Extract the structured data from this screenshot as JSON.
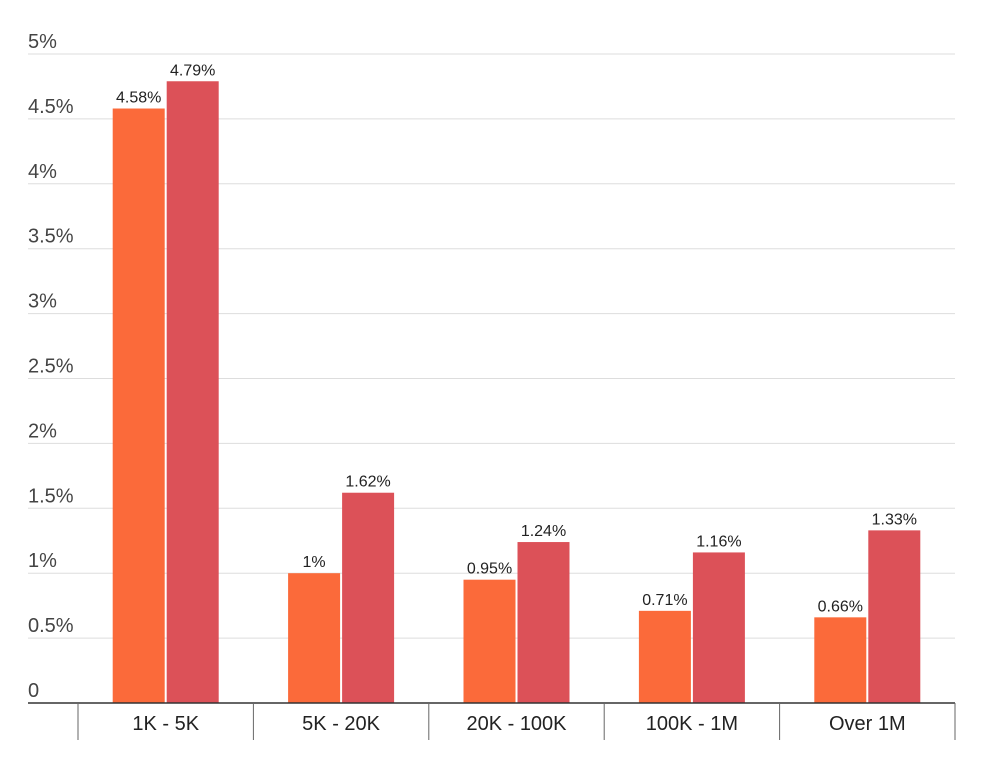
{
  "chart_data": {
    "type": "bar",
    "categories": [
      "1K - 5K",
      "5K - 20K",
      "20K - 100K",
      "100K - 1M",
      "Over 1M"
    ],
    "series": [
      {
        "values": [
          4.58,
          1.0,
          0.95,
          0.71,
          0.66
        ],
        "labels": [
          "4.58%",
          "1%",
          "0.95%",
          "0.71%",
          "0.66%"
        ],
        "color": "#fb6a3a"
      },
      {
        "values": [
          4.79,
          1.62,
          1.24,
          1.16,
          1.33
        ],
        "labels": [
          "4.79%",
          "1.62%",
          "1.24%",
          "1.16%",
          "1.33%"
        ],
        "color": "#dc5158"
      }
    ],
    "yticks": [
      0,
      0.5,
      1,
      1.5,
      2,
      2.5,
      3,
      3.5,
      4,
      4.5,
      5
    ],
    "ytick_labels": [
      "0",
      "0.5%",
      "1%",
      "1.5%",
      "2%",
      "2.5%",
      "3%",
      "3.5%",
      "4%",
      "4.5%",
      "5%"
    ],
    "ylim": [
      0,
      5
    ],
    "grid": true,
    "legend": "none",
    "title": "",
    "xlabel": "",
    "ylabel": ""
  }
}
